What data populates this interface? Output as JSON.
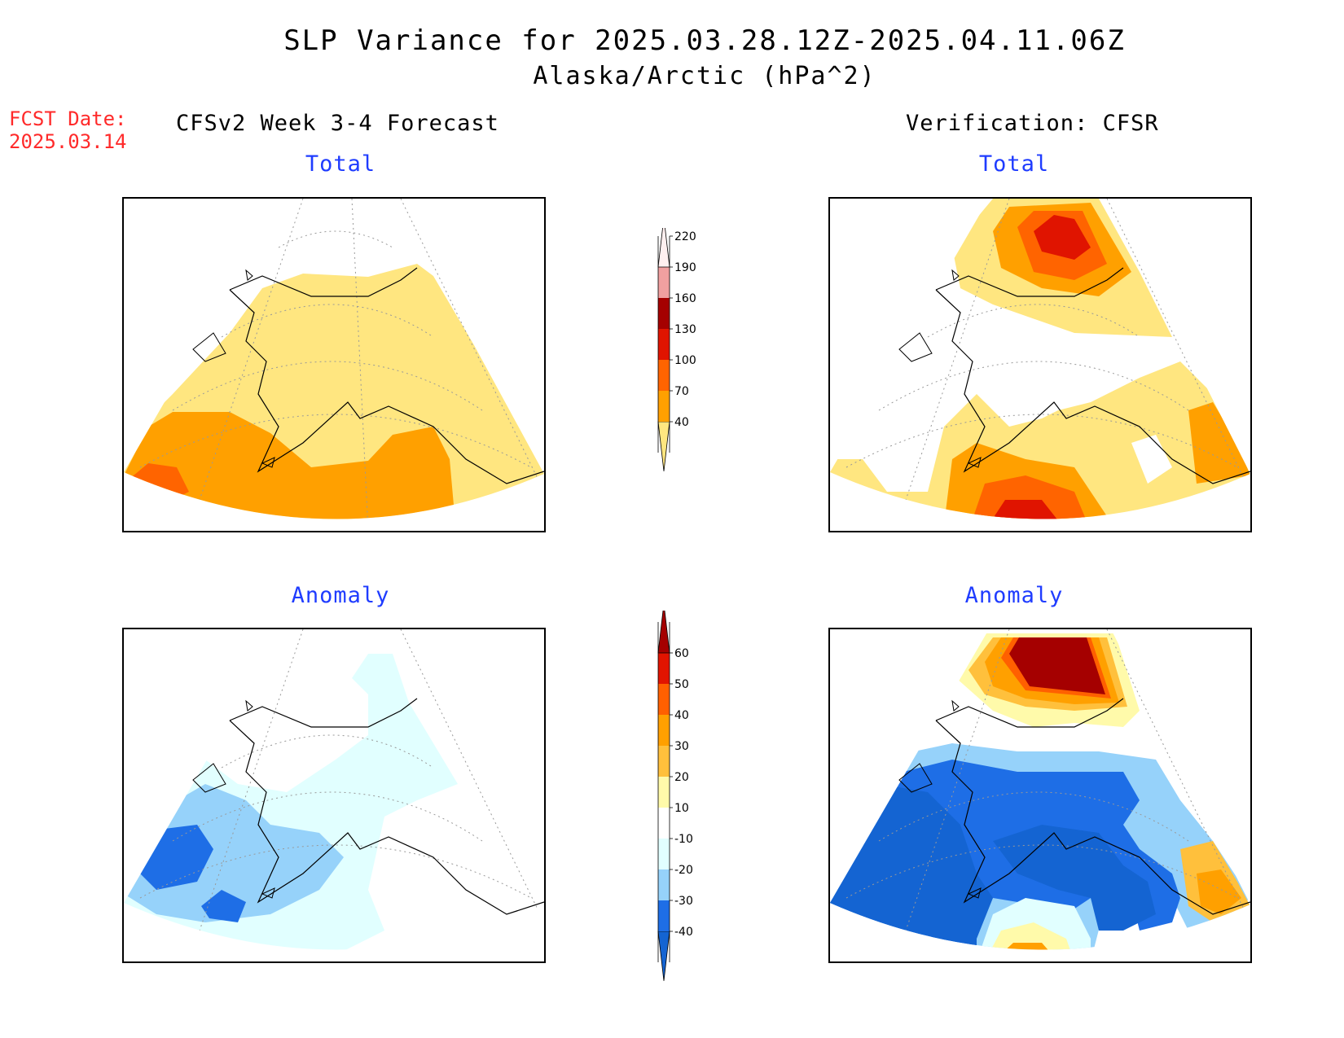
{
  "title": "SLP Variance for 2025.03.28.12Z-2025.04.11.06Z",
  "subtitle": "Alaska/Arctic (hPa^2)",
  "fcst_date_label": "FCST Date:",
  "fcst_date_value": "2025.03.14",
  "left_header": "CFSv2 Week 3-4 Forecast",
  "right_header": "Verification: CFSR",
  "panels": {
    "forecast_total": {
      "title": "Total"
    },
    "verification_total": {
      "title": "Total"
    },
    "forecast_anomaly": {
      "title": "Anomaly"
    },
    "verification_anomaly": {
      "title": "Anomaly"
    }
  },
  "colorbar_total": {
    "labels": [
      "40",
      "70",
      "100",
      "130",
      "160",
      "190",
      "220"
    ],
    "colors": [
      "#ffe680",
      "#ffa000",
      "#ff6400",
      "#e01400",
      "#a50000",
      "#f0a0a0",
      "#fff0f0"
    ]
  },
  "colorbar_anomaly": {
    "labels": [
      "-40",
      "-30",
      "-20",
      "-10",
      "10",
      "20",
      "30",
      "40",
      "50",
      "60"
    ],
    "colors": [
      "#1464d2",
      "#1e6ee6",
      "#96d2fa",
      "#e1ffff",
      "#ffffff",
      "#fffaaa",
      "#ffc03c",
      "#ffa000",
      "#ff6000",
      "#e11400",
      "#a50000"
    ]
  }
}
